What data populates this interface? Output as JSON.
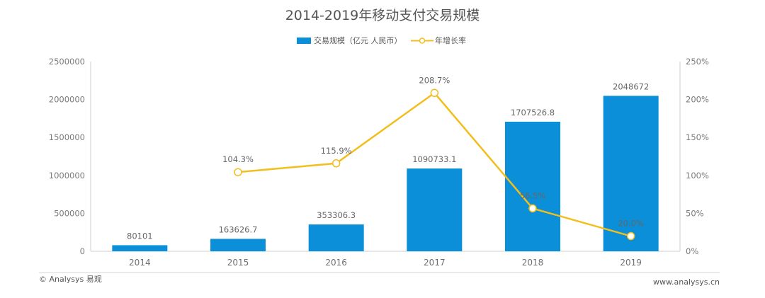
{
  "chart_data": {
    "type": "bar",
    "title": "2014-2019年移动支付交易规模",
    "categories": [
      "2014",
      "2015",
      "2016",
      "2017",
      "2018",
      "2019"
    ],
    "series": [
      {
        "name": "交易规模（亿元 人民币）",
        "type": "bar",
        "axis": "left",
        "color": "#0a8fd8",
        "values": [
          80101,
          163626.7,
          353306.3,
          1090733.1,
          1707526.8,
          2048672
        ],
        "labels": [
          "80101",
          "163626.7",
          "353306.3",
          "1090733.1",
          "1707526.8",
          "2048672"
        ]
      },
      {
        "name": "年增长率",
        "type": "line",
        "axis": "right",
        "color": "#f2be1d",
        "values": [
          null,
          104.3,
          115.9,
          208.7,
          56.5,
          20.0
        ],
        "labels": [
          "",
          "104.3%",
          "115.9%",
          "208.7%",
          "56.5%",
          "20.0%"
        ]
      }
    ],
    "y_left": {
      "min": 0,
      "max": 2500000,
      "ticks": [
        "0",
        "500000",
        "1000000",
        "1500000",
        "2000000",
        "2500000"
      ]
    },
    "y_right": {
      "min": 0,
      "max": 250,
      "ticks": [
        "0%",
        "50%",
        "100%",
        "150%",
        "200%",
        "250%"
      ]
    },
    "legend_position": "top-center"
  },
  "footer": {
    "left": "© Analysys 易观",
    "right": "www.analysys.cn"
  }
}
